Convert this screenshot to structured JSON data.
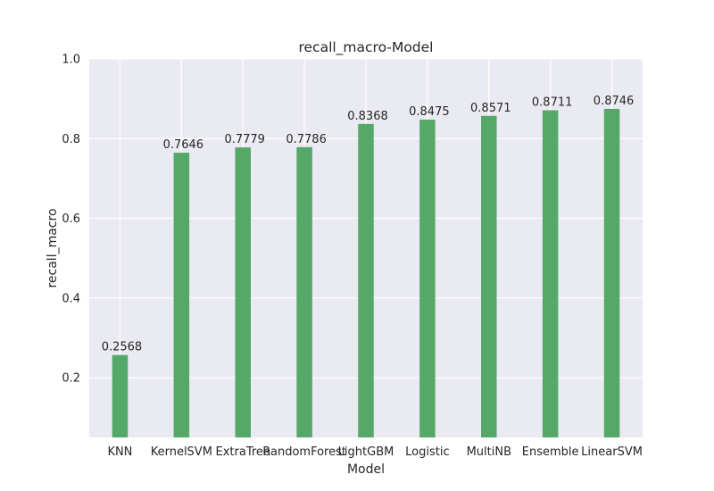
{
  "chart_data": {
    "type": "bar",
    "title": "recall_macro-Model",
    "xlabel": "Model",
    "ylabel": "recall_macro",
    "categories": [
      "KNN",
      "KernelSVM",
      "ExtraTree",
      "RandomForest",
      "LightGBM",
      "Logistic",
      "MultiNB",
      "Ensemble",
      "LinearSVM"
    ],
    "values": [
      0.2568,
      0.7646,
      0.7779,
      0.7786,
      0.8368,
      0.8475,
      0.8571,
      0.8711,
      0.8746
    ],
    "value_labels": [
      "0.2568",
      "0.7646",
      "0.7779",
      "0.7786",
      "0.8368",
      "0.8475",
      "0.8571",
      "0.8711",
      "0.8746"
    ],
    "ylim": [
      0.05,
      1.0
    ],
    "yticks": [
      0.2,
      0.4,
      0.6,
      0.8,
      1.0
    ],
    "ytick_labels": [
      "0.2",
      "0.4",
      "0.6",
      "0.8",
      "1.0"
    ],
    "grid": true,
    "legend": "none",
    "colors": {
      "bar": "#55a868",
      "plot_background": "#eaeaf2",
      "grid": "#ffffff"
    }
  }
}
